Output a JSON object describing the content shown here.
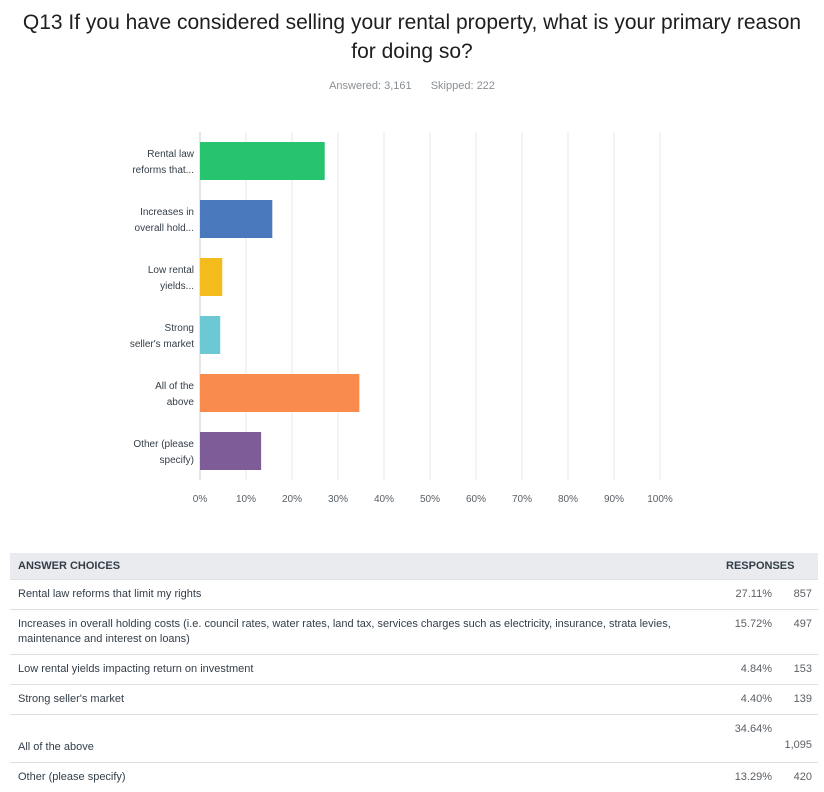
{
  "question": {
    "title": "Q13 If you have considered selling your rental property, what is your primary reason for doing so?",
    "answered": "Answered: 3,161",
    "skipped": "Skipped: 222"
  },
  "chart_data": {
    "type": "bar",
    "orientation": "horizontal",
    "categories": [
      [
        "Rental law",
        "reforms that..."
      ],
      [
        "Increases in",
        "overall hold..."
      ],
      [
        "Low rental",
        "yields..."
      ],
      [
        "Strong",
        "seller's market"
      ],
      [
        "All of the",
        "above"
      ],
      [
        "Other (please",
        "specify)"
      ]
    ],
    "values": [
      27.11,
      15.72,
      4.84,
      4.4,
      34.64,
      13.29
    ],
    "colors": [
      "#27c36e",
      "#4a78bd",
      "#f3bb1b",
      "#6cc9d4",
      "#f98b4c",
      "#7d5c97"
    ],
    "xticks": [
      "0%",
      "10%",
      "20%",
      "30%",
      "40%",
      "50%",
      "60%",
      "70%",
      "80%",
      "90%",
      "100%"
    ],
    "xlim": [
      0,
      100
    ],
    "grid": true
  },
  "table": {
    "headers": {
      "choice": "ANSWER CHOICES",
      "responses": "RESPONSES"
    },
    "rows": [
      {
        "choice": "Rental law reforms that limit my rights",
        "percent": "27.11%",
        "count": "857"
      },
      {
        "choice": "Increases in overall holding costs (i.e. council rates, water rates, land tax, services charges such as electricity, insurance, strata levies, maintenance and interest on loans)",
        "percent": "15.72%",
        "count": "497"
      },
      {
        "choice": "Low rental yields impacting return on investment",
        "percent": "4.84%",
        "count": "153"
      },
      {
        "choice": "Strong seller's market",
        "percent": "4.40%",
        "count": "139"
      },
      {
        "choice": "All of the above",
        "percent": "34.64%",
        "count": "1,095"
      },
      {
        "choice": "Other (please specify)",
        "percent": "13.29%",
        "count": "420"
      }
    ]
  }
}
